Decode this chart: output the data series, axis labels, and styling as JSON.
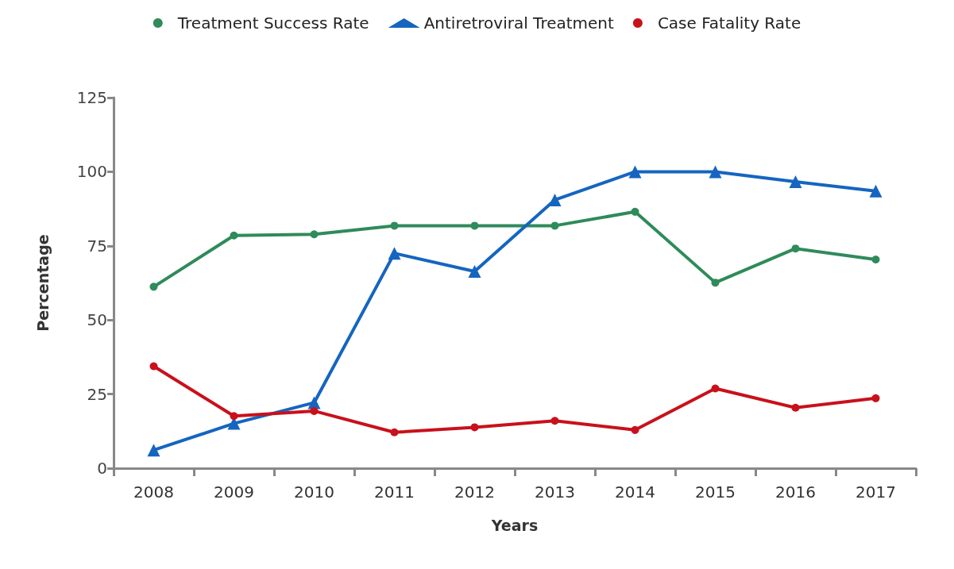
{
  "chart_data": {
    "type": "line",
    "xlabel": "Years",
    "ylabel": "Percentage",
    "categories": [
      "2008",
      "2009",
      "2010",
      "2011",
      "2012",
      "2013",
      "2014",
      "2015",
      "2016",
      "2017"
    ],
    "series": [
      {
        "name": "Treatment Success Rate",
        "color": "#2e8b5a",
        "marker": "circle",
        "values": [
          61.2,
          78.5,
          78.9,
          81.8,
          81.8,
          81.8,
          86.5,
          62.6,
          74.1,
          70.4
        ]
      },
      {
        "name": "Antiretroviral Treatment",
        "color": "#1565c0",
        "marker": "triangle",
        "values": [
          6.1,
          15.1,
          22.1,
          72.5,
          66.4,
          90.5,
          100,
          100,
          96.6,
          93.5
        ]
      },
      {
        "name": "Case Fatality Rate",
        "color": "#c8111b",
        "marker": "circle",
        "values": [
          34.4,
          17.6,
          19.3,
          12.1,
          13.8,
          16.0,
          12.9,
          26.9,
          20.4,
          23.6
        ]
      }
    ],
    "ylim": [
      0,
      125
    ],
    "yticks": [
      0,
      25,
      50,
      75,
      100,
      125
    ],
    "grid": false,
    "legend": "top",
    "line_style": "solid"
  }
}
